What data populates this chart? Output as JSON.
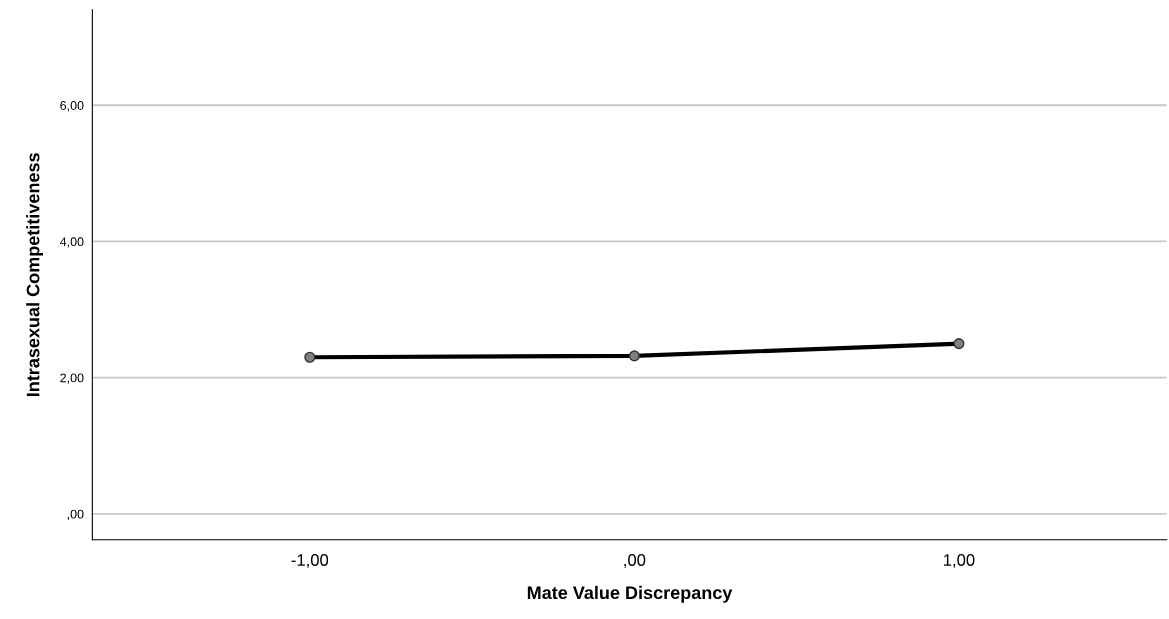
{
  "chart_data": {
    "type": "line",
    "xlabel": "Mate Value Discrepancy",
    "ylabel": "Intrasexual Competitiveness",
    "x": [
      -1,
      0,
      1
    ],
    "series": [
      {
        "color": "#000000",
        "values": [
          2.3,
          2.32,
          2.5
        ]
      }
    ],
    "xlim": [
      -1.67,
      1.64
    ],
    "xticks": [
      {
        "value": -1,
        "label": "-1,00"
      },
      {
        "value": 0,
        "label": ",00"
      },
      {
        "value": 1,
        "label": "1,00"
      }
    ],
    "ylim": [
      -0.38,
      7.4
    ],
    "yticks": [
      {
        "value": 0,
        "label": ",00"
      },
      {
        "value": 2,
        "label": "2,00"
      },
      {
        "value": 4,
        "label": "4,00"
      },
      {
        "value": 6,
        "label": "6,00"
      }
    ],
    "grid": "y",
    "marker": "circle",
    "line_style": "solid",
    "legend": false
  }
}
